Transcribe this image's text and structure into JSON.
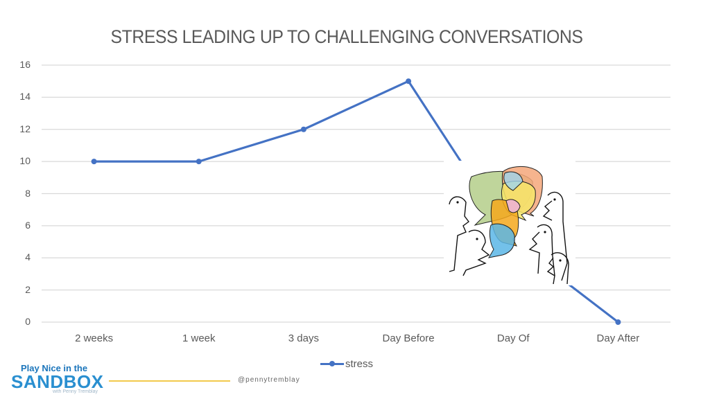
{
  "chart_data": {
    "type": "line",
    "title": "STRESS LEADING UP TO CHALLENGING CONVERSATIONS",
    "xlabel": "",
    "ylabel": "",
    "categories": [
      "2 weeks",
      "1 week",
      "3 days",
      "Day Before",
      "Day Of",
      "Day After"
    ],
    "series": [
      {
        "name": "stress",
        "values": [
          10,
          10,
          12,
          15,
          5,
          0
        ],
        "color": "#4472c4"
      }
    ],
    "ylim": [
      0,
      16
    ],
    "yticks": [
      "0",
      "2",
      "4",
      "6",
      "8",
      "10",
      "12",
      "14",
      "16"
    ],
    "grid": true,
    "legend_position": "bottom",
    "annotations": [
      "Illustration of a group of people talking with overlapping colorful speech bubbles, covering the Day Of point"
    ]
  },
  "footer": {
    "logo_line1": "Play Nice in the",
    "logo_line2": "SANDBOX",
    "logo_line3": "with Penny Tremblay",
    "handle": "@pennytremblay",
    "accent_color": "#f2c94c",
    "logo_color": "#2a8fd0"
  }
}
